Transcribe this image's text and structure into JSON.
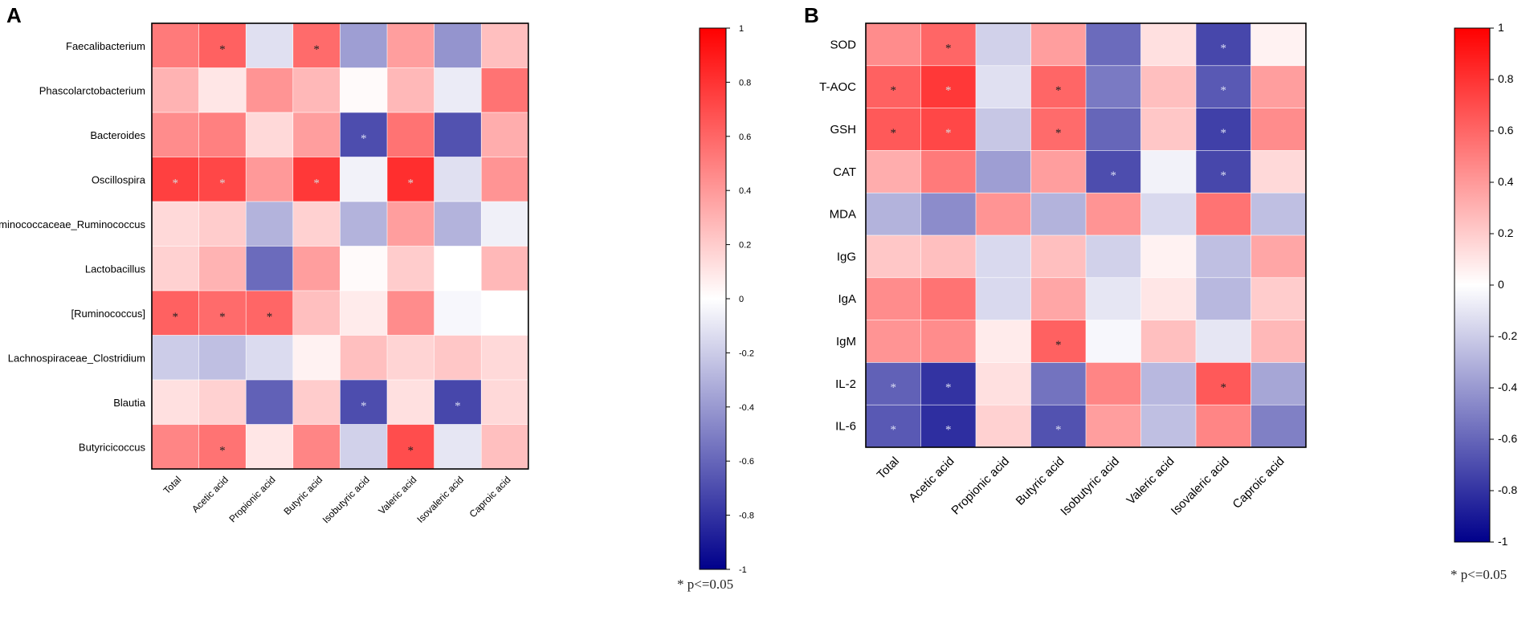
{
  "colors": {
    "negative": "#00008b",
    "neutral": "#ffffff",
    "positive": "#ff0000"
  },
  "chart_data": [
    {
      "panel": "A",
      "type": "heatmap",
      "title": "",
      "rows": [
        "Faecalibacterium",
        "Phascolarctobacterium",
        "Bacteroides",
        "Oscillospira",
        "Ruminococcaceae_Ruminococcus",
        "Lactobacillus",
        "[Ruminococcus]",
        "Lachnospiraceae_Clostridium",
        "Blautia",
        "Butyricicoccus"
      ],
      "columns": [
        "Total",
        "Acetic acid",
        "Propionic acid",
        "Butyric acid",
        "Isobutyric acid",
        "Valeric acid",
        "Isovaleric acid",
        "Caproic acid"
      ],
      "values": [
        [
          0.52,
          0.62,
          -0.12,
          0.58,
          -0.38,
          0.38,
          -0.42,
          0.25
        ],
        [
          0.3,
          0.1,
          0.42,
          0.28,
          0.02,
          0.28,
          -0.08,
          0.55
        ],
        [
          0.45,
          0.5,
          0.15,
          0.38,
          -0.7,
          0.55,
          -0.68,
          0.32
        ],
        [
          0.75,
          0.72,
          0.4,
          0.78,
          -0.05,
          0.82,
          -0.12,
          0.42
        ],
        [
          0.15,
          0.2,
          -0.3,
          0.18,
          -0.3,
          0.38,
          -0.3,
          -0.06
        ],
        [
          0.18,
          0.3,
          -0.58,
          0.38,
          0.02,
          0.2,
          0.0,
          0.28
        ],
        [
          0.62,
          0.58,
          0.6,
          0.25,
          0.08,
          0.45,
          -0.03,
          0.0
        ],
        [
          -0.2,
          -0.25,
          -0.14,
          0.05,
          0.25,
          0.17,
          0.22,
          0.15
        ],
        [
          0.12,
          0.18,
          -0.62,
          0.2,
          -0.7,
          0.12,
          -0.72,
          0.15
        ],
        [
          0.48,
          0.55,
          0.1,
          0.48,
          -0.18,
          0.7,
          -0.1,
          0.25
        ]
      ],
      "significant": [
        [
          false,
          true,
          false,
          true,
          false,
          false,
          false,
          false
        ],
        [
          false,
          false,
          false,
          false,
          false,
          false,
          false,
          false
        ],
        [
          false,
          false,
          false,
          false,
          true,
          false,
          false,
          false
        ],
        [
          true,
          true,
          false,
          true,
          false,
          true,
          false,
          false
        ],
        [
          false,
          false,
          false,
          false,
          false,
          false,
          false,
          false
        ],
        [
          false,
          false,
          false,
          false,
          false,
          false,
          false,
          false
        ],
        [
          true,
          true,
          true,
          false,
          false,
          false,
          false,
          false
        ],
        [
          false,
          false,
          false,
          false,
          false,
          false,
          false,
          false
        ],
        [
          false,
          false,
          false,
          false,
          true,
          false,
          true,
          false
        ],
        [
          false,
          true,
          false,
          false,
          false,
          true,
          false,
          false
        ]
      ],
      "significance_marker": "*",
      "colorbar": {
        "min": -1,
        "max": 1,
        "ticks": [
          "1",
          "0.8",
          "0.6",
          "0.4",
          "0.2",
          "0",
          "-0.2",
          "-0.4",
          "-0.6",
          "-0.8",
          "-1"
        ]
      },
      "note": "* p<=0.05"
    },
    {
      "panel": "B",
      "type": "heatmap",
      "title": "",
      "rows": [
        "SOD",
        "T-AOC",
        "GSH",
        "CAT",
        "MDA",
        "IgG",
        "IgA",
        "IgM",
        "IL-2",
        "IL-6"
      ],
      "columns": [
        "Total",
        "Acetic acid",
        "Propionic acid",
        "Butyric acid",
        "Isobutyric acid",
        "Valeric acid",
        "Isovaleric acid",
        "Caproic acid"
      ],
      "values": [
        [
          0.45,
          0.6,
          -0.18,
          0.38,
          -0.58,
          0.12,
          -0.72,
          0.05
        ],
        [
          0.62,
          0.78,
          -0.12,
          0.6,
          -0.52,
          0.25,
          -0.65,
          0.38
        ],
        [
          0.65,
          0.72,
          -0.22,
          0.58,
          -0.6,
          0.22,
          -0.75,
          0.45
        ],
        [
          0.32,
          0.52,
          -0.38,
          0.38,
          -0.7,
          -0.05,
          -0.72,
          0.15
        ],
        [
          -0.3,
          -0.45,
          0.42,
          -0.3,
          0.42,
          -0.15,
          0.55,
          -0.25
        ],
        [
          0.22,
          0.25,
          -0.15,
          0.25,
          -0.18,
          0.05,
          -0.25,
          0.35
        ],
        [
          0.45,
          0.55,
          -0.15,
          0.35,
          -0.1,
          0.1,
          -0.28,
          0.2
        ],
        [
          0.42,
          0.45,
          0.08,
          0.62,
          -0.03,
          0.25,
          -0.1,
          0.28
        ],
        [
          -0.62,
          -0.8,
          0.12,
          -0.55,
          0.48,
          -0.28,
          0.65,
          -0.35
        ],
        [
          -0.65,
          -0.82,
          0.18,
          -0.68,
          0.38,
          -0.25,
          0.48,
          -0.5
        ]
      ],
      "significant": [
        [
          false,
          true,
          false,
          false,
          false,
          false,
          true,
          false
        ],
        [
          true,
          true,
          false,
          true,
          false,
          false,
          true,
          false
        ],
        [
          true,
          true,
          false,
          true,
          false,
          false,
          true,
          false
        ],
        [
          false,
          false,
          false,
          false,
          true,
          false,
          true,
          false
        ],
        [
          false,
          false,
          false,
          false,
          false,
          false,
          false,
          false
        ],
        [
          false,
          false,
          false,
          false,
          false,
          false,
          false,
          false
        ],
        [
          false,
          false,
          false,
          false,
          false,
          false,
          false,
          false
        ],
        [
          false,
          false,
          false,
          true,
          false,
          false,
          false,
          false
        ],
        [
          true,
          true,
          false,
          false,
          false,
          false,
          true,
          false
        ],
        [
          true,
          true,
          false,
          true,
          false,
          false,
          false,
          false
        ]
      ],
      "significance_marker": "*",
      "colorbar": {
        "min": -1,
        "max": 1,
        "ticks": [
          "1",
          "0.8",
          "0.6",
          "0.4",
          "0.2",
          "0",
          "-0.2",
          "-0.4",
          "-0.6",
          "-0.8",
          "-1"
        ]
      },
      "note": "* p<=0.05"
    }
  ]
}
